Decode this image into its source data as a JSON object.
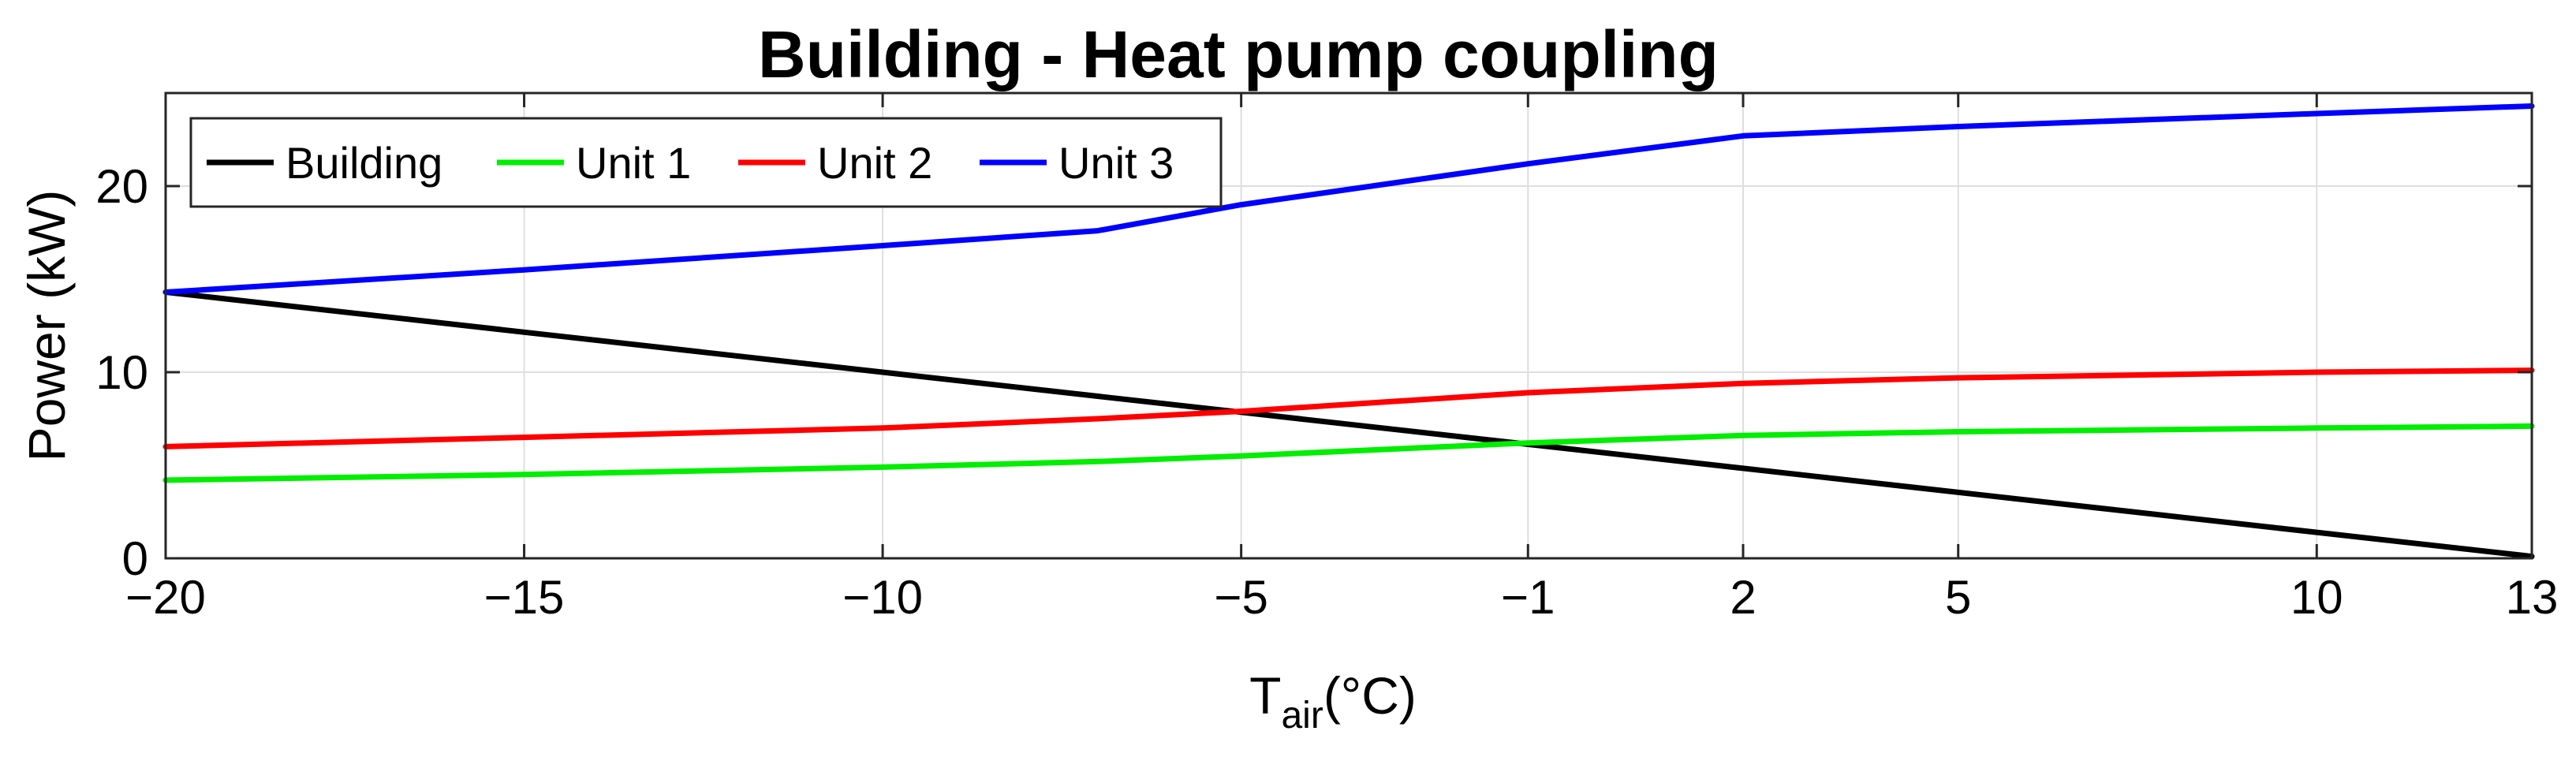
{
  "chart_data": {
    "type": "line",
    "title": "Building - Heat pump coupling",
    "xlabel": "T",
    "xlabel_sub": "air",
    "xlabel_unit": "(°C)",
    "ylabel": "Power (kW)",
    "xlim": [
      -20,
      13
    ],
    "ylim": [
      0,
      25
    ],
    "xticks": [
      -20,
      -15,
      -10,
      -5,
      -1,
      2,
      5,
      10,
      13
    ],
    "xtick_labels": [
      "−20",
      "−15",
      "−10",
      "−5",
      "−1",
      "2",
      "5",
      "10",
      "13"
    ],
    "yticks": [
      0,
      10,
      20
    ],
    "ytick_labels": [
      "0",
      "10",
      "20"
    ],
    "grid": true,
    "legend_position": "top-left",
    "series": [
      {
        "name": "Building",
        "color": "#000000",
        "x": [
          -20,
          13
        ],
        "y": [
          14.3,
          0.1
        ]
      },
      {
        "name": "Unit 1",
        "color": "#00ee00",
        "x": [
          -20,
          -15,
          -10,
          -7,
          -5,
          -1,
          2,
          5,
          10,
          13
        ],
        "y": [
          4.2,
          4.5,
          4.9,
          5.2,
          5.5,
          6.2,
          6.6,
          6.8,
          7.0,
          7.1
        ]
      },
      {
        "name": "Unit 2",
        "color": "#ff0000",
        "x": [
          -20,
          -15,
          -10,
          -7,
          -5,
          -1,
          2,
          5,
          10,
          13
        ],
        "y": [
          6.0,
          6.5,
          7.0,
          7.5,
          7.9,
          8.9,
          9.4,
          9.7,
          10.0,
          10.1
        ]
      },
      {
        "name": "Unit 3",
        "color": "#0000ff",
        "x": [
          -20,
          -15,
          -10,
          -7,
          -5,
          -1,
          2,
          5,
          10,
          13
        ],
        "y": [
          14.3,
          15.5,
          16.8,
          17.6,
          19.0,
          21.2,
          22.7,
          23.2,
          23.9,
          24.3
        ]
      }
    ]
  }
}
